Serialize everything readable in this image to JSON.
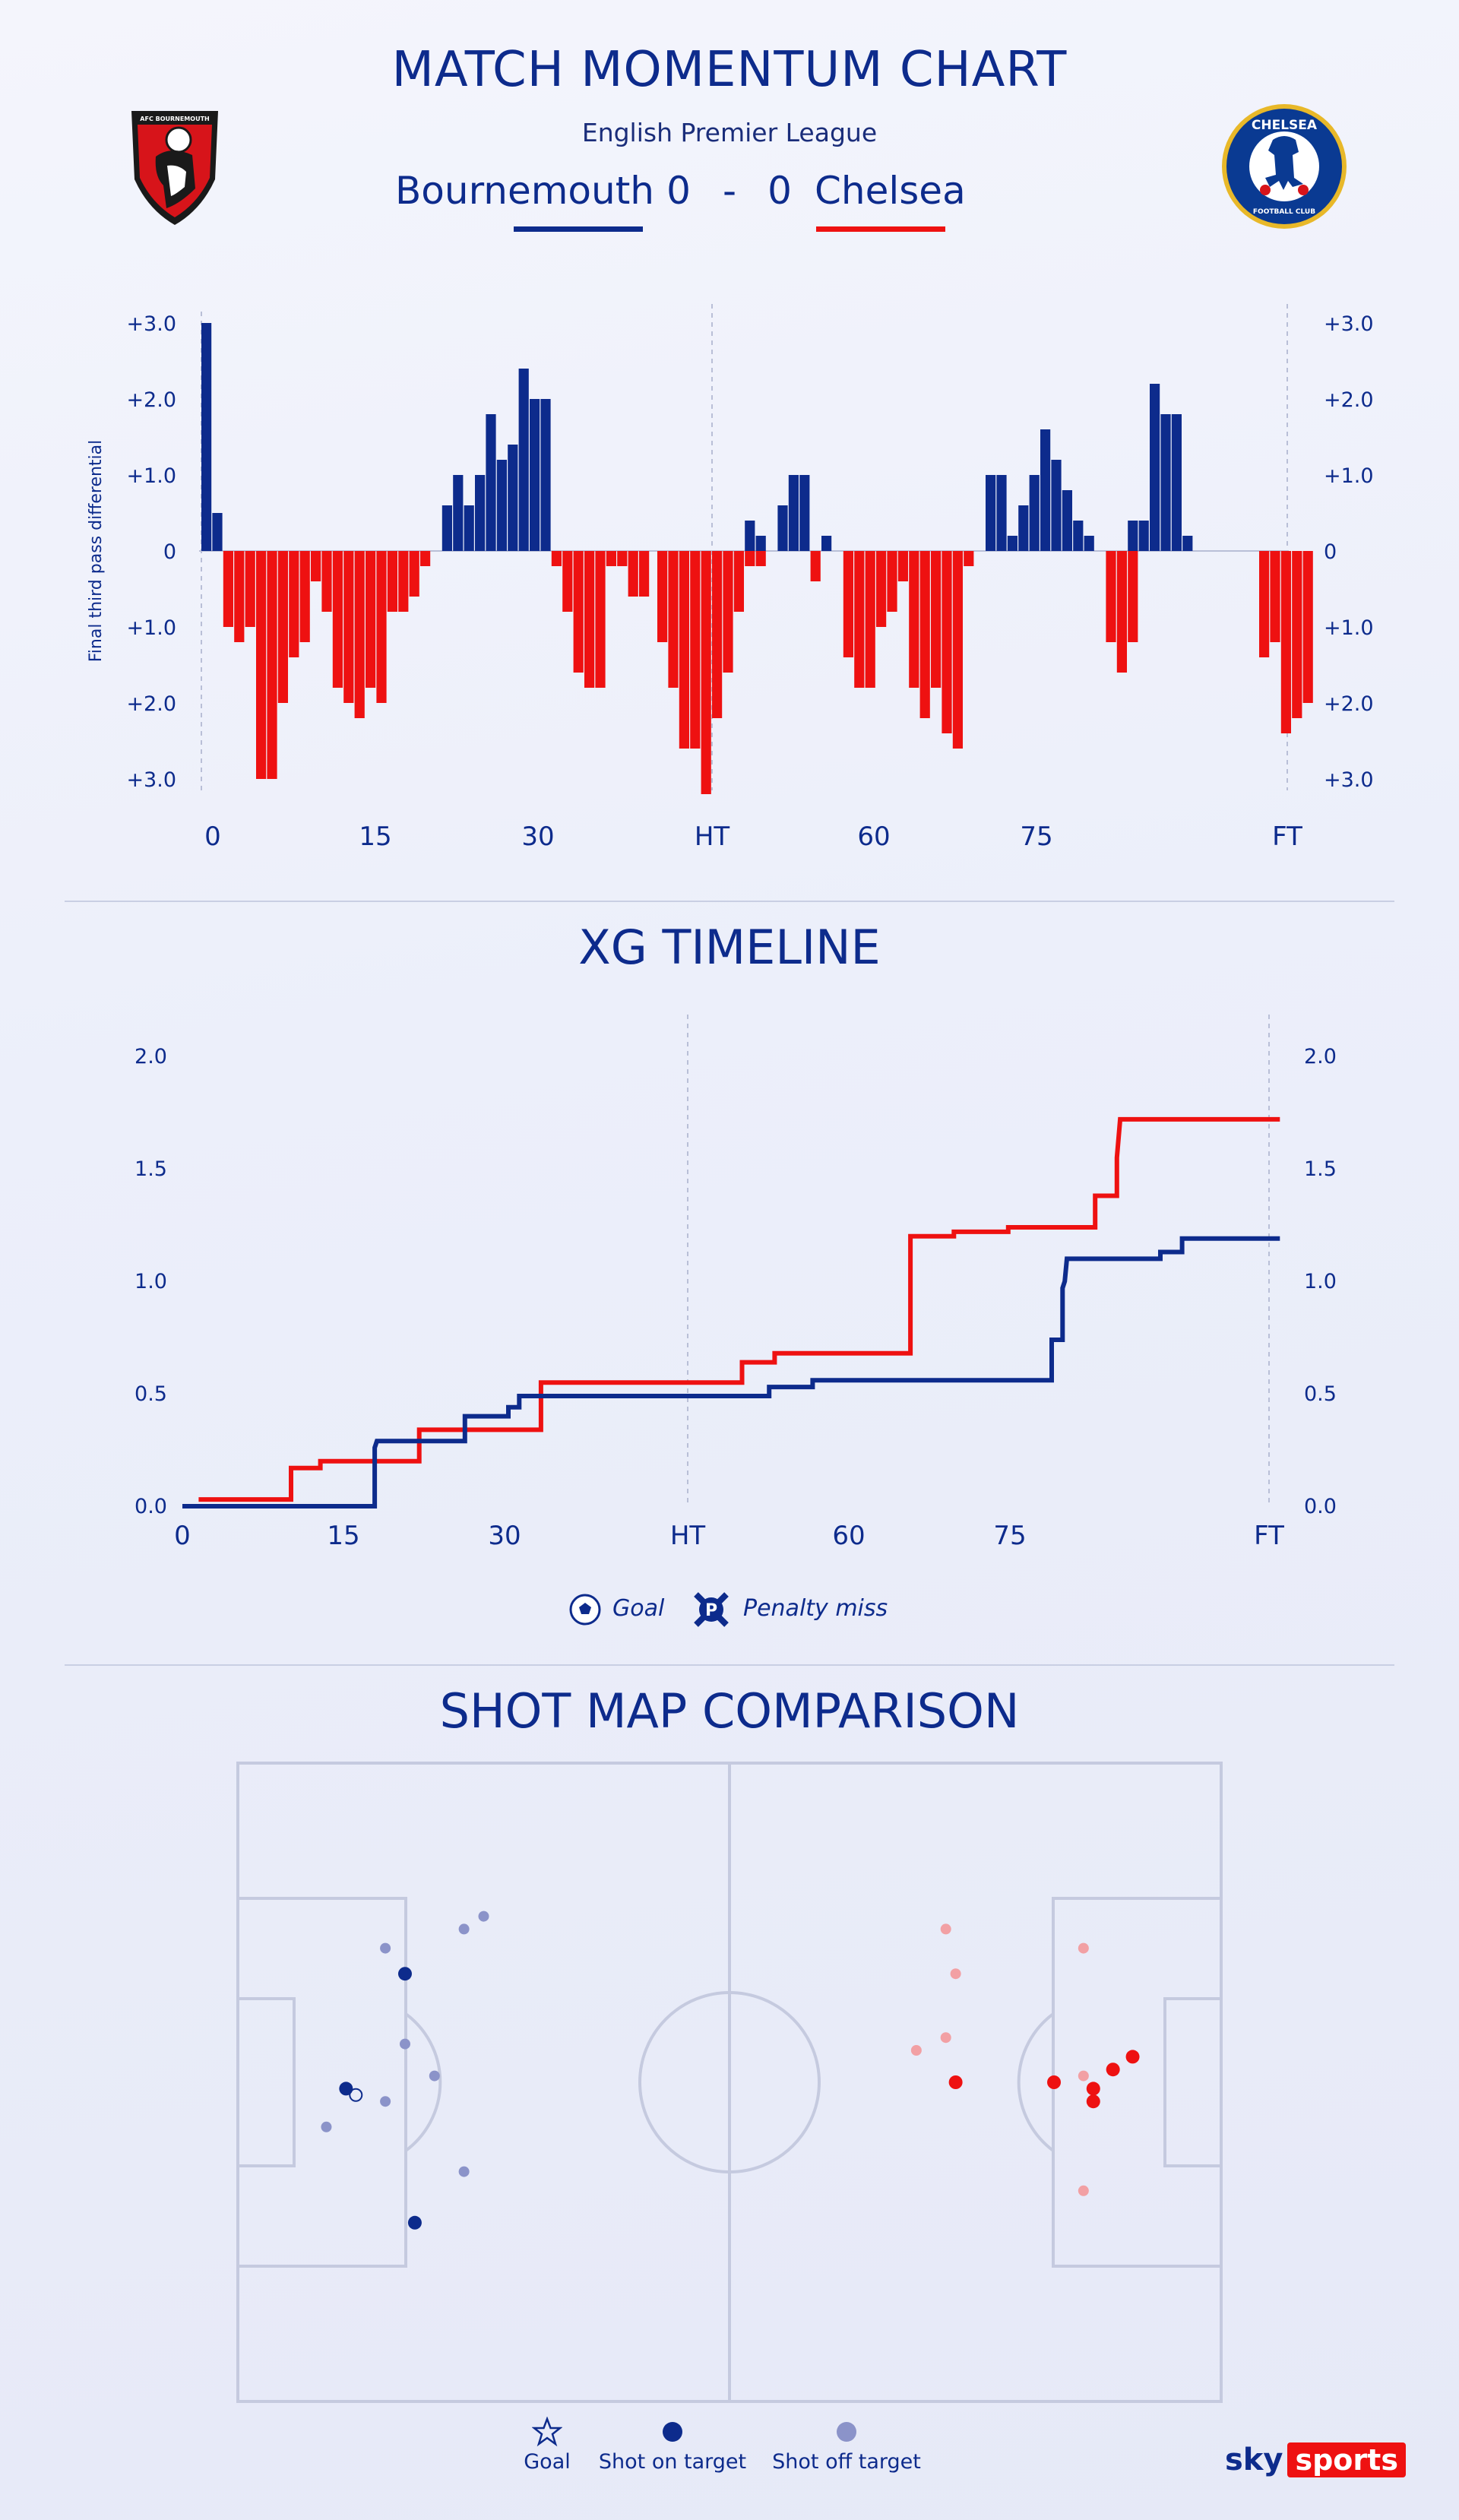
{
  "header": {
    "title": "MATCH MOMENTUM CHART",
    "league": "English Premier League",
    "home_team": "Bournemouth",
    "away_team": "Chelsea",
    "home_score": "0",
    "separator": "-",
    "away_score": "0",
    "home_badge_text": "AFC BOURNEMOUTH",
    "away_badge_text": "CHELSEA",
    "away_badge_sub": "FOOTBALL CLUB"
  },
  "colors": {
    "home": "#0d2b8c",
    "away": "#ee1111",
    "home_light": "#8b93c9",
    "away_light": "#f2a0a4",
    "pitch_line": "#c5cadf"
  },
  "momentum": {
    "ylabel": "Final third pass differential",
    "ytick_labels": [
      "+3.0",
      "+2.0",
      "+1.0",
      "0",
      "+1.0",
      "+2.0",
      "+3.0"
    ],
    "xtick_labels": [
      "0",
      "15",
      "30",
      "HT",
      "60",
      "75",
      "FT"
    ]
  },
  "xg": {
    "title": "XG TIMELINE",
    "ytick_labels": [
      "2.0",
      "1.5",
      "1.0",
      "0.5",
      "0.0"
    ],
    "xtick_labels": [
      "0",
      "15",
      "30",
      "HT",
      "60",
      "75",
      "FT"
    ],
    "legend_goal": "Goal",
    "legend_penalty": "Penalty miss",
    "penalty_icon_letter": "P"
  },
  "shotmap": {
    "title": "SHOT MAP COMPARISON",
    "legend_goal": "Goal",
    "legend_on_target": "Shot on target",
    "legend_off_target": "Shot off target"
  },
  "branding": {
    "sky": "sky",
    "sports": "sports"
  },
  "chart_data": [
    {
      "type": "bar",
      "title": "MATCH MOMENTUM CHART",
      "ylabel": "Final third pass differential",
      "ylim": [
        -3.2,
        3.2
      ],
      "x_ticks": [
        "0",
        "15",
        "30",
        "HT",
        "60",
        "75",
        "FT"
      ],
      "series": [
        {
          "name": "Bournemouth",
          "segments": [
            {
              "half": 1,
              "start": 0,
              "values": [
                3.0,
                0.5
              ]
            },
            {
              "half": 1,
              "start": 22,
              "values": [
                0.6,
                1.0,
                0.6,
                1.0,
                1.8,
                1.2,
                1.4,
                2.4,
                2.0,
                2.0
              ]
            },
            {
              "half": 2,
              "start": 8,
              "values": [
                0.4,
                0.2
              ]
            },
            {
              "half": 2,
              "start": 11,
              "values": [
                0.6,
                1.0,
                1.0
              ]
            },
            {
              "half": 2,
              "start": 15,
              "values": [
                0.2
              ]
            },
            {
              "half": 2,
              "start": 30,
              "values": [
                1.0,
                1.0,
                0.2,
                0.6,
                1.0,
                1.6,
                1.2,
                0.8,
                0.4,
                0.2
              ]
            },
            {
              "half": 2,
              "start": 43,
              "values": [
                0.4,
                0.4,
                2.2,
                1.8,
                1.8,
                0.2
              ]
            }
          ]
        },
        {
          "name": "Chelsea",
          "segments": [
            {
              "half": 1,
              "start": 2,
              "values": [
                -1.0,
                -1.2,
                -1.0,
                -3.0,
                -3.0,
                -2.0,
                -1.4,
                -1.2,
                -0.4,
                -0.8,
                -1.8,
                -2.0,
                -2.2,
                -1.8,
                -2.0,
                -0.8,
                -0.8,
                -0.6,
                -0.2
              ]
            },
            {
              "half": 1,
              "start": 32,
              "values": [
                -0.2,
                -0.8,
                -1.6,
                -1.8,
                -1.8,
                -0.2,
                -0.2,
                -0.6,
                -0.6
              ]
            },
            {
              "half": 2,
              "start": 0,
              "values": [
                -1.2,
                -1.8,
                -2.6,
                -2.6,
                -3.2,
                -2.2,
                -1.6,
                -0.8,
                -0.2,
                -0.2
              ]
            },
            {
              "half": 2,
              "start": 14,
              "values": [
                -0.4
              ]
            },
            {
              "half": 2,
              "start": 17,
              "values": [
                -1.4,
                -1.8,
                -1.8,
                -1.0,
                -0.8,
                -0.4,
                -1.8,
                -2.2,
                -1.8,
                -2.4,
                -2.6,
                -0.2
              ]
            },
            {
              "half": 2,
              "start": 41,
              "values": [
                -1.2,
                -1.6,
                -1.2
              ]
            },
            {
              "half": 2,
              "start": 55,
              "values": [
                -1.4,
                -1.2,
                -2.4,
                -2.2,
                -2.0
              ]
            }
          ]
        }
      ]
    },
    {
      "type": "line",
      "title": "XG TIMELINE",
      "ylim": [
        0,
        2.0
      ],
      "x_ticks": [
        "0",
        "15",
        "30",
        "HT",
        "60",
        "75",
        "FT"
      ],
      "series": [
        {
          "name": "Bournemouth",
          "steps": [
            [
              0,
              0.0
            ],
            [
              17.7,
              0.0
            ],
            [
              17.7,
              0.26
            ],
            [
              17.9,
              0.29
            ],
            [
              26,
              0.29
            ],
            [
              26,
              0.4
            ],
            [
              30,
              0.4
            ],
            [
              30,
              0.44
            ],
            [
              31,
              0.44
            ],
            [
              31,
              0.49
            ],
            [
              54,
              0.49
            ],
            [
              54,
              0.53
            ],
            [
              58,
              0.53
            ],
            [
              58,
              0.56
            ],
            [
              80,
              0.56
            ],
            [
              80,
              0.74
            ],
            [
              81,
              0.74
            ],
            [
              81,
              0.97
            ],
            [
              81.2,
              1.0
            ],
            [
              81.4,
              1.1
            ],
            [
              90,
              1.1
            ],
            [
              90,
              1.13
            ],
            [
              92,
              1.13
            ],
            [
              92,
              1.19
            ],
            [
              101,
              1.19
            ]
          ]
        },
        {
          "name": "Chelsea",
          "steps": [
            [
              1.5,
              0.03
            ],
            [
              10,
              0.03
            ],
            [
              10,
              0.17
            ],
            [
              12.7,
              0.17
            ],
            [
              12.7,
              0.2
            ],
            [
              21.8,
              0.2
            ],
            [
              21.8,
              0.34
            ],
            [
              33,
              0.34
            ],
            [
              33,
              0.55
            ],
            [
              51.5,
              0.55
            ],
            [
              51.5,
              0.64
            ],
            [
              54.5,
              0.64
            ],
            [
              54.5,
              0.68
            ],
            [
              67,
              0.68
            ],
            [
              67,
              1.2
            ],
            [
              71,
              1.2
            ],
            [
              71,
              1.22
            ],
            [
              76,
              1.22
            ],
            [
              76,
              1.24
            ],
            [
              84,
              1.24
            ],
            [
              84,
              1.38
            ],
            [
              86,
              1.38
            ],
            [
              86,
              1.55
            ],
            [
              86.3,
              1.72
            ],
            [
              101,
              1.72
            ]
          ]
        }
      ]
    },
    {
      "type": "scatter",
      "title": "SHOT MAP COMPARISON",
      "series": [
        {
          "name": "Bournemouth",
          "shots": [
            {
              "x": 17,
              "y": 33,
              "outcome": "on_target"
            },
            {
              "x": 11,
              "y": 51,
              "outcome": "on_target"
            },
            {
              "x": 18,
              "y": 72,
              "outcome": "on_target"
            },
            {
              "x": 12,
              "y": 52,
              "outcome": "goal_marker"
            },
            {
              "x": 15,
              "y": 29,
              "outcome": "off_target"
            },
            {
              "x": 23,
              "y": 26,
              "outcome": "off_target"
            },
            {
              "x": 25,
              "y": 24,
              "outcome": "off_target"
            },
            {
              "x": 17,
              "y": 44,
              "outcome": "off_target"
            },
            {
              "x": 20,
              "y": 49,
              "outcome": "off_target"
            },
            {
              "x": 15,
              "y": 53,
              "outcome": "off_target"
            },
            {
              "x": 9,
              "y": 57,
              "outcome": "off_target"
            },
            {
              "x": 23,
              "y": 64,
              "outcome": "off_target"
            }
          ]
        },
        {
          "name": "Chelsea",
          "shots": [
            {
              "x": 91,
              "y": 46,
              "outcome": "on_target"
            },
            {
              "x": 89,
              "y": 48,
              "outcome": "on_target"
            },
            {
              "x": 83,
              "y": 50,
              "outcome": "on_target"
            },
            {
              "x": 87,
              "y": 51,
              "outcome": "on_target"
            },
            {
              "x": 87,
              "y": 53,
              "outcome": "on_target"
            },
            {
              "x": 73,
              "y": 50,
              "outcome": "on_target"
            },
            {
              "x": 72,
              "y": 26,
              "outcome": "off_target"
            },
            {
              "x": 73,
              "y": 33,
              "outcome": "off_target"
            },
            {
              "x": 86,
              "y": 29,
              "outcome": "off_target"
            },
            {
              "x": 69,
              "y": 45,
              "outcome": "off_target"
            },
            {
              "x": 72,
              "y": 43,
              "outcome": "off_target"
            },
            {
              "x": 86,
              "y": 49,
              "outcome": "off_target"
            },
            {
              "x": 86,
              "y": 67,
              "outcome": "off_target"
            }
          ]
        }
      ]
    }
  ]
}
